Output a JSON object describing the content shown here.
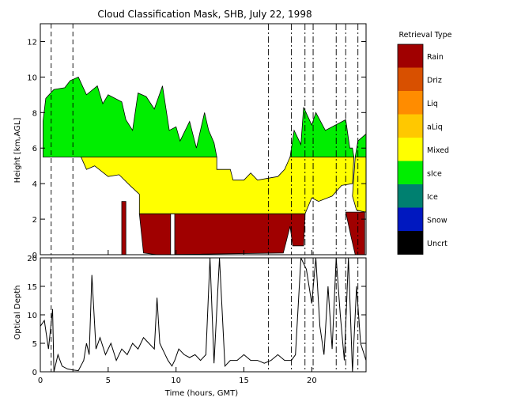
{
  "chart_data": {
    "type": "heatmap",
    "title": "Cloud Classification Mask, SHB, July 22, 1998",
    "top_panel": {
      "ylabel": "Height [km,AGL]",
      "ylim": [
        0,
        13
      ],
      "yticks": [
        0,
        2,
        4,
        6,
        8,
        10,
        12
      ],
      "xlim": [
        0,
        24
      ],
      "classes_present": [
        "Rain",
        "Mixed",
        "sIce",
        "Uncrt"
      ]
    },
    "bottom_panel": {
      "type": "line",
      "ylabel": "Optical Depth",
      "ylim": [
        0,
        20
      ],
      "yticks": [
        0,
        5,
        10,
        15,
        20
      ],
      "xlim": [
        0,
        24
      ],
      "xticks": [
        0,
        5,
        10,
        15,
        20
      ],
      "xlabel": "Time (hours, GMT)",
      "series": [
        {
          "x": [
            0,
            0.3,
            0.6,
            0.9,
            1.0,
            1.3,
            1.6,
            2.0,
            2.4,
            2.8,
            3.2,
            3.4,
            3.6,
            3.8,
            4.1,
            4.4,
            4.8,
            5.2,
            5.6,
            6.0,
            6.4,
            6.8,
            7.2,
            7.6,
            8.0,
            8.4,
            8.6,
            8.8,
            9.0,
            9.4,
            9.7,
            9.9,
            10.2,
            10.6,
            11.0,
            11.4,
            11.8,
            12.2,
            12.5,
            12.8,
            13.2,
            13.6,
            14.0,
            14.5,
            15.0,
            15.5,
            16.0,
            16.5,
            17.0,
            17.5,
            18.0,
            18.5,
            18.8,
            19.2,
            19.6,
            20.0,
            20.3,
            20.6,
            20.9,
            21.2,
            21.5,
            21.8,
            22.1,
            22.4,
            22.7,
            23.0,
            23.3,
            23.6,
            24.0
          ],
          "values": [
            8,
            9,
            4,
            11,
            0,
            3,
            1,
            0.5,
            0.3,
            0.2,
            2,
            5,
            3,
            17,
            4,
            6,
            3,
            5,
            2,
            4,
            3,
            5,
            4,
            6,
            5,
            4,
            13,
            5,
            4,
            2,
            1,
            2,
            4,
            3,
            2.5,
            3,
            2,
            3,
            20,
            1.5,
            20,
            1,
            2,
            2,
            3,
            2,
            2,
            1.5,
            2,
            3,
            2,
            2,
            3,
            20,
            18,
            12,
            20,
            8,
            3,
            15,
            4,
            20,
            10,
            2,
            20,
            0,
            15,
            5,
            2
          ]
        }
      ]
    },
    "vertical_markers": {
      "dashed": [
        0.8,
        2.4
      ],
      "dash_dot": [
        16.8,
        18.5,
        19.5,
        20.1,
        21.8,
        22.5,
        23.4
      ]
    },
    "legend": {
      "title": "Retrieval Type",
      "entries": [
        {
          "label": "Rain",
          "color": "#a00000"
        },
        {
          "label": "Driz",
          "color": "#d85000"
        },
        {
          "label": "Liq",
          "color": "#ff8c00"
        },
        {
          "label": "aLiq",
          "color": "#ffc800"
        },
        {
          "label": "Mixed",
          "color": "#ffff00"
        },
        {
          "label": "sIce",
          "color": "#00ee00"
        },
        {
          "label": "Ice",
          "color": "#008070"
        },
        {
          "label": "Snow",
          "color": "#0018c0"
        },
        {
          "label": "Uncrt",
          "color": "#000000"
        }
      ]
    }
  }
}
